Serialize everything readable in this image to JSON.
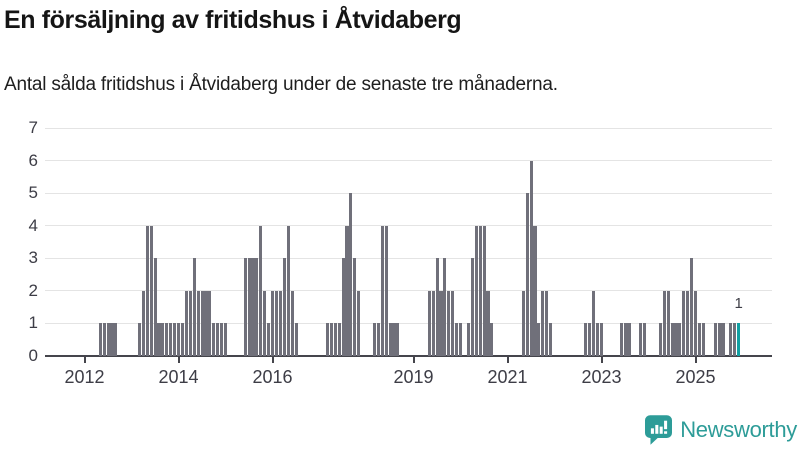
{
  "title": "En försäljning av fritidshus i Åtvidaberg",
  "subtitle": "Antal sålda fritidshus i Åtvidaberg under de senaste tre månaderna.",
  "annotation": {
    "label": "1"
  },
  "branding": {
    "name": "Newsworthy",
    "icon": "newsworthy-speech-bubble-bar-chart-icon"
  },
  "colors": {
    "bar": "#70707a",
    "highlight": "#12a0a3",
    "grid": "#e4e4e4",
    "axis": "#45454c",
    "label_text": "#3d3d46",
    "brand_teal": "#2d9c98"
  },
  "chart_data": {
    "type": "bar",
    "title": "En försäljning av fritidshus i Åtvidaberg",
    "subtitle": "Antal sålda fritidshus i Åtvidaberg under de senaste tre månaderna.",
    "unit": "sålda fritidshus per månad (rullande tre månader)",
    "grid": "horizontal",
    "legend": "none",
    "ylim": [
      0,
      7
    ],
    "y_ticks": [
      0,
      1,
      2,
      3,
      4,
      5,
      6,
      7
    ],
    "x_tick_labels": [
      "2012",
      "2014",
      "2016",
      "2019",
      "2021",
      "2023",
      "2025"
    ],
    "x_domain_months": [
      "2011-03",
      "2026-04"
    ],
    "highlight_label": "1",
    "series": [
      {
        "name": "Antal sålda fritidshus",
        "points": [
          {
            "m": "2012-05",
            "v": 1
          },
          {
            "m": "2012-06",
            "v": 1
          },
          {
            "m": "2012-07",
            "v": 1
          },
          {
            "m": "2012-08",
            "v": 1
          },
          {
            "m": "2012-09",
            "v": 1
          },
          {
            "m": "2013-03",
            "v": 1
          },
          {
            "m": "2013-04",
            "v": 2
          },
          {
            "m": "2013-05",
            "v": 4
          },
          {
            "m": "2013-06",
            "v": 4
          },
          {
            "m": "2013-07",
            "v": 3
          },
          {
            "m": "2013-08",
            "v": 1
          },
          {
            "m": "2013-09",
            "v": 1
          },
          {
            "m": "2013-10",
            "v": 1
          },
          {
            "m": "2013-11",
            "v": 1
          },
          {
            "m": "2013-12",
            "v": 1
          },
          {
            "m": "2014-01",
            "v": 1
          },
          {
            "m": "2014-02",
            "v": 1
          },
          {
            "m": "2014-03",
            "v": 2
          },
          {
            "m": "2014-04",
            "v": 2
          },
          {
            "m": "2014-05",
            "v": 3
          },
          {
            "m": "2014-06",
            "v": 2
          },
          {
            "m": "2014-07",
            "v": 2
          },
          {
            "m": "2014-08",
            "v": 2
          },
          {
            "m": "2014-09",
            "v": 2
          },
          {
            "m": "2014-10",
            "v": 1
          },
          {
            "m": "2014-11",
            "v": 1
          },
          {
            "m": "2014-12",
            "v": 1
          },
          {
            "m": "2015-01",
            "v": 1
          },
          {
            "m": "2015-06",
            "v": 3
          },
          {
            "m": "2015-07",
            "v": 3
          },
          {
            "m": "2015-08",
            "v": 3
          },
          {
            "m": "2015-09",
            "v": 3
          },
          {
            "m": "2015-10",
            "v": 4
          },
          {
            "m": "2015-11",
            "v": 2
          },
          {
            "m": "2015-12",
            "v": 1
          },
          {
            "m": "2016-01",
            "v": 2
          },
          {
            "m": "2016-02",
            "v": 2
          },
          {
            "m": "2016-03",
            "v": 2
          },
          {
            "m": "2016-04",
            "v": 3
          },
          {
            "m": "2016-05",
            "v": 4
          },
          {
            "m": "2016-06",
            "v": 2
          },
          {
            "m": "2016-07",
            "v": 1
          },
          {
            "m": "2017-03",
            "v": 1
          },
          {
            "m": "2017-04",
            "v": 1
          },
          {
            "m": "2017-05",
            "v": 1
          },
          {
            "m": "2017-06",
            "v": 1
          },
          {
            "m": "2017-07",
            "v": 3
          },
          {
            "m": "2017-08",
            "v": 4
          },
          {
            "m": "2017-09",
            "v": 5
          },
          {
            "m": "2017-10",
            "v": 3
          },
          {
            "m": "2017-11",
            "v": 2
          },
          {
            "m": "2018-03",
            "v": 1
          },
          {
            "m": "2018-04",
            "v": 1
          },
          {
            "m": "2018-05",
            "v": 4
          },
          {
            "m": "2018-06",
            "v": 4
          },
          {
            "m": "2018-07",
            "v": 1
          },
          {
            "m": "2018-08",
            "v": 1
          },
          {
            "m": "2018-09",
            "v": 1
          },
          {
            "m": "2019-05",
            "v": 2
          },
          {
            "m": "2019-06",
            "v": 2
          },
          {
            "m": "2019-07",
            "v": 3
          },
          {
            "m": "2019-08",
            "v": 2
          },
          {
            "m": "2019-09",
            "v": 3
          },
          {
            "m": "2019-10",
            "v": 2
          },
          {
            "m": "2019-11",
            "v": 2
          },
          {
            "m": "2019-12",
            "v": 1
          },
          {
            "m": "2020-01",
            "v": 1
          },
          {
            "m": "2020-03",
            "v": 1
          },
          {
            "m": "2020-04",
            "v": 3
          },
          {
            "m": "2020-05",
            "v": 4
          },
          {
            "m": "2020-06",
            "v": 4
          },
          {
            "m": "2020-07",
            "v": 4
          },
          {
            "m": "2020-08",
            "v": 2
          },
          {
            "m": "2020-09",
            "v": 1
          },
          {
            "m": "2021-05",
            "v": 2
          },
          {
            "m": "2021-06",
            "v": 5
          },
          {
            "m": "2021-07",
            "v": 6
          },
          {
            "m": "2021-08",
            "v": 4
          },
          {
            "m": "2021-09",
            "v": 1
          },
          {
            "m": "2021-10",
            "v": 2
          },
          {
            "m": "2021-11",
            "v": 2
          },
          {
            "m": "2021-12",
            "v": 1
          },
          {
            "m": "2022-09",
            "v": 1
          },
          {
            "m": "2022-10",
            "v": 1
          },
          {
            "m": "2022-11",
            "v": 2
          },
          {
            "m": "2022-12",
            "v": 1
          },
          {
            "m": "2023-01",
            "v": 1
          },
          {
            "m": "2023-06",
            "v": 1
          },
          {
            "m": "2023-07",
            "v": 1
          },
          {
            "m": "2023-08",
            "v": 1
          },
          {
            "m": "2023-11",
            "v": 1
          },
          {
            "m": "2023-12",
            "v": 1
          },
          {
            "m": "2024-04",
            "v": 1
          },
          {
            "m": "2024-05",
            "v": 2
          },
          {
            "m": "2024-06",
            "v": 2
          },
          {
            "m": "2024-07",
            "v": 1
          },
          {
            "m": "2024-08",
            "v": 1
          },
          {
            "m": "2024-09",
            "v": 1
          },
          {
            "m": "2024-10",
            "v": 2
          },
          {
            "m": "2024-11",
            "v": 2
          },
          {
            "m": "2024-12",
            "v": 3
          },
          {
            "m": "2025-01",
            "v": 2
          },
          {
            "m": "2025-02",
            "v": 1
          },
          {
            "m": "2025-03",
            "v": 1
          },
          {
            "m": "2025-06",
            "v": 1
          },
          {
            "m": "2025-07",
            "v": 1
          },
          {
            "m": "2025-08",
            "v": 1
          },
          {
            "m": "2025-10",
            "v": 1
          },
          {
            "m": "2025-11",
            "v": 1
          },
          {
            "m": "2025-12",
            "v": 1,
            "highlight": true
          }
        ]
      }
    ]
  }
}
